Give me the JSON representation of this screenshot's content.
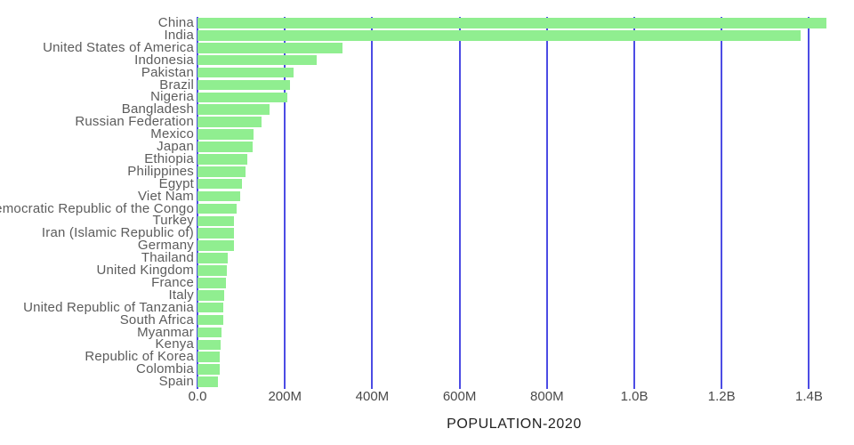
{
  "chart_data": {
    "type": "bar",
    "orientation": "horizontal",
    "title": "",
    "xlabel": "POPULATION-2020",
    "ylabel": "",
    "grid": true,
    "xlim_millions": [
      0,
      1450
    ],
    "x_ticks": [
      {
        "label": "0.0",
        "value_millions": 0
      },
      {
        "label": "200M",
        "value_millions": 200
      },
      {
        "label": "400M",
        "value_millions": 400
      },
      {
        "label": "600M",
        "value_millions": 600
      },
      {
        "label": "800M",
        "value_millions": 800
      },
      {
        "label": "1.0B",
        "value_millions": 1000
      },
      {
        "label": "1.2B",
        "value_millions": 1200
      },
      {
        "label": "1.4B",
        "value_millions": 1400
      }
    ],
    "categories": [
      "China",
      "India",
      "United States of America",
      "Indonesia",
      "Pakistan",
      "Brazil",
      "Nigeria",
      "Bangladesh",
      "Russian Federation",
      "Mexico",
      "Japan",
      "Ethiopia",
      "Philippines",
      "Egypt",
      "Viet Nam",
      "Democratic Republic of the Congo",
      "Turkey",
      "Iran (Islamic Republic of)",
      "Germany",
      "Thailand",
      "United Kingdom",
      "France",
      "Italy",
      "United Republic of Tanzania",
      "South Africa",
      "Myanmar",
      "Kenya",
      "Republic of Korea",
      "Colombia",
      "Spain"
    ],
    "values_millions": [
      1439.3,
      1380.0,
      331.0,
      273.5,
      220.9,
      212.6,
      206.1,
      164.7,
      145.9,
      128.9,
      126.5,
      115.0,
      109.6,
      102.3,
      97.3,
      89.6,
      84.3,
      84.0,
      83.8,
      69.8,
      67.9,
      65.3,
      60.5,
      59.7,
      59.3,
      54.4,
      53.8,
      51.3,
      50.9,
      46.8
    ],
    "colors": {
      "bar": "#90ee90",
      "gridline": "#4c4ce4",
      "label_text": "#5c5c5c",
      "tick_text": "#4a4a4a",
      "title_text": "#1f1f1f",
      "background": "#ffffff"
    }
  }
}
